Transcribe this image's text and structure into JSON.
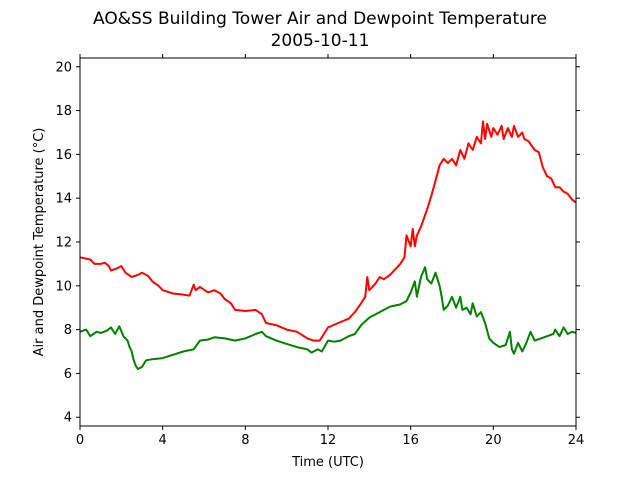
{
  "chart_data": {
    "type": "line",
    "title": "AO&SS Building Tower Air and Dewpoint Temperature",
    "subtitle": "2005-10-11",
    "xlabel": "Time (UTC)",
    "ylabel": "Air and Dewpoint Temperature (°C)",
    "xlim": [
      0,
      24
    ],
    "ylim": [
      3.6,
      20.4
    ],
    "x_ticks": [
      0,
      4,
      8,
      12,
      16,
      20,
      24
    ],
    "y_ticks": [
      4,
      6,
      8,
      10,
      12,
      14,
      16,
      18,
      20
    ],
    "grid": false,
    "legend": "none",
    "series": [
      {
        "color": "#ff0000",
        "points": [
          [
            0.0,
            11.3
          ],
          [
            0.5,
            11.2
          ],
          [
            0.7,
            11.0
          ],
          [
            1.0,
            11.0
          ],
          [
            1.2,
            11.05
          ],
          [
            1.4,
            10.9
          ],
          [
            1.5,
            10.7
          ],
          [
            1.8,
            10.8
          ],
          [
            2.0,
            10.9
          ],
          [
            2.2,
            10.6
          ],
          [
            2.5,
            10.4
          ],
          [
            2.8,
            10.5
          ],
          [
            3.0,
            10.6
          ],
          [
            3.3,
            10.45
          ],
          [
            3.5,
            10.2
          ],
          [
            3.8,
            10.0
          ],
          [
            4.0,
            9.8
          ],
          [
            4.5,
            9.65
          ],
          [
            5.0,
            9.6
          ],
          [
            5.3,
            9.55
          ],
          [
            5.5,
            10.05
          ],
          [
            5.6,
            9.8
          ],
          [
            5.8,
            9.95
          ],
          [
            6.2,
            9.7
          ],
          [
            6.5,
            9.8
          ],
          [
            6.8,
            9.65
          ],
          [
            7.0,
            9.4
          ],
          [
            7.3,
            9.2
          ],
          [
            7.5,
            8.9
          ],
          [
            8.0,
            8.85
          ],
          [
            8.5,
            8.9
          ],
          [
            8.8,
            8.7
          ],
          [
            9.0,
            8.3
          ],
          [
            9.5,
            8.2
          ],
          [
            10.0,
            8.0
          ],
          [
            10.5,
            7.9
          ],
          [
            11.0,
            7.6
          ],
          [
            11.3,
            7.5
          ],
          [
            11.6,
            7.5
          ],
          [
            11.8,
            7.8
          ],
          [
            12.0,
            8.1
          ],
          [
            12.5,
            8.3
          ],
          [
            13.0,
            8.5
          ],
          [
            13.3,
            8.8
          ],
          [
            13.6,
            9.2
          ],
          [
            13.8,
            9.5
          ],
          [
            13.9,
            10.4
          ],
          [
            14.0,
            9.8
          ],
          [
            14.3,
            10.1
          ],
          [
            14.5,
            10.4
          ],
          [
            14.7,
            10.3
          ],
          [
            15.0,
            10.5
          ],
          [
            15.3,
            10.8
          ],
          [
            15.5,
            11.0
          ],
          [
            15.7,
            11.3
          ],
          [
            15.8,
            12.3
          ],
          [
            16.0,
            11.8
          ],
          [
            16.1,
            12.6
          ],
          [
            16.2,
            11.8
          ],
          [
            16.3,
            12.3
          ],
          [
            16.5,
            12.7
          ],
          [
            16.8,
            13.5
          ],
          [
            17.0,
            14.1
          ],
          [
            17.2,
            14.8
          ],
          [
            17.4,
            15.5
          ],
          [
            17.6,
            15.8
          ],
          [
            17.8,
            15.6
          ],
          [
            18.0,
            15.8
          ],
          [
            18.2,
            15.5
          ],
          [
            18.4,
            16.2
          ],
          [
            18.6,
            15.8
          ],
          [
            18.8,
            16.5
          ],
          [
            19.0,
            16.2
          ],
          [
            19.2,
            16.8
          ],
          [
            19.4,
            16.5
          ],
          [
            19.5,
            17.5
          ],
          [
            19.6,
            16.7
          ],
          [
            19.7,
            17.4
          ],
          [
            19.9,
            16.8
          ],
          [
            20.0,
            17.2
          ],
          [
            20.2,
            16.9
          ],
          [
            20.4,
            17.3
          ],
          [
            20.5,
            16.7
          ],
          [
            20.7,
            17.2
          ],
          [
            20.9,
            16.8
          ],
          [
            21.0,
            17.3
          ],
          [
            21.2,
            16.8
          ],
          [
            21.4,
            17.0
          ],
          [
            21.5,
            16.7
          ],
          [
            21.7,
            16.6
          ],
          [
            22.0,
            16.2
          ],
          [
            22.2,
            16.1
          ],
          [
            22.4,
            15.4
          ],
          [
            22.6,
            15.0
          ],
          [
            22.8,
            14.9
          ],
          [
            23.0,
            14.5
          ],
          [
            23.2,
            14.5
          ],
          [
            23.4,
            14.3
          ],
          [
            23.6,
            14.2
          ],
          [
            23.8,
            13.95
          ],
          [
            24.0,
            13.8
          ]
        ]
      },
      {
        "color": "#008000",
        "points": [
          [
            0.0,
            7.9
          ],
          [
            0.3,
            8.0
          ],
          [
            0.5,
            7.7
          ],
          [
            0.8,
            7.9
          ],
          [
            1.0,
            7.85
          ],
          [
            1.3,
            7.95
          ],
          [
            1.5,
            8.1
          ],
          [
            1.7,
            7.8
          ],
          [
            1.9,
            8.15
          ],
          [
            2.1,
            7.7
          ],
          [
            2.3,
            7.5
          ],
          [
            2.4,
            7.2
          ],
          [
            2.5,
            7.0
          ],
          [
            2.6,
            6.6
          ],
          [
            2.7,
            6.35
          ],
          [
            2.8,
            6.2
          ],
          [
            3.0,
            6.3
          ],
          [
            3.2,
            6.6
          ],
          [
            3.5,
            6.65
          ],
          [
            4.0,
            6.7
          ],
          [
            4.5,
            6.85
          ],
          [
            5.0,
            7.0
          ],
          [
            5.5,
            7.1
          ],
          [
            5.8,
            7.5
          ],
          [
            6.2,
            7.55
          ],
          [
            6.5,
            7.65
          ],
          [
            7.0,
            7.6
          ],
          [
            7.5,
            7.5
          ],
          [
            8.0,
            7.6
          ],
          [
            8.5,
            7.8
          ],
          [
            8.8,
            7.9
          ],
          [
            9.0,
            7.7
          ],
          [
            9.5,
            7.5
          ],
          [
            10.0,
            7.35
          ],
          [
            10.5,
            7.2
          ],
          [
            11.0,
            7.1
          ],
          [
            11.2,
            6.95
          ],
          [
            11.5,
            7.1
          ],
          [
            11.7,
            7.0
          ],
          [
            12.0,
            7.5
          ],
          [
            12.3,
            7.45
          ],
          [
            12.6,
            7.5
          ],
          [
            13.0,
            7.7
          ],
          [
            13.3,
            7.8
          ],
          [
            13.6,
            8.2
          ],
          [
            14.0,
            8.55
          ],
          [
            14.5,
            8.8
          ],
          [
            15.0,
            9.05
          ],
          [
            15.5,
            9.15
          ],
          [
            15.8,
            9.3
          ],
          [
            16.0,
            9.7
          ],
          [
            16.2,
            10.2
          ],
          [
            16.3,
            9.5
          ],
          [
            16.5,
            10.4
          ],
          [
            16.7,
            10.85
          ],
          [
            16.8,
            10.3
          ],
          [
            17.0,
            10.1
          ],
          [
            17.2,
            10.6
          ],
          [
            17.4,
            10.0
          ],
          [
            17.5,
            9.5
          ],
          [
            17.6,
            8.9
          ],
          [
            17.8,
            9.1
          ],
          [
            18.0,
            9.5
          ],
          [
            18.2,
            9.0
          ],
          [
            18.4,
            9.5
          ],
          [
            18.5,
            8.9
          ],
          [
            18.7,
            9.0
          ],
          [
            18.9,
            8.7
          ],
          [
            19.0,
            9.2
          ],
          [
            19.2,
            8.6
          ],
          [
            19.4,
            8.8
          ],
          [
            19.6,
            8.3
          ],
          [
            19.8,
            7.6
          ],
          [
            20.0,
            7.4
          ],
          [
            20.3,
            7.2
          ],
          [
            20.6,
            7.3
          ],
          [
            20.8,
            7.9
          ],
          [
            20.9,
            7.1
          ],
          [
            21.0,
            6.9
          ],
          [
            21.2,
            7.4
          ],
          [
            21.4,
            7.0
          ],
          [
            21.6,
            7.4
          ],
          [
            21.8,
            7.9
          ],
          [
            22.0,
            7.5
          ],
          [
            22.3,
            7.6
          ],
          [
            22.6,
            7.7
          ],
          [
            22.9,
            7.8
          ],
          [
            23.0,
            8.0
          ],
          [
            23.2,
            7.7
          ],
          [
            23.4,
            8.1
          ],
          [
            23.6,
            7.8
          ],
          [
            23.8,
            7.9
          ],
          [
            24.0,
            7.85
          ]
        ]
      }
    ]
  }
}
